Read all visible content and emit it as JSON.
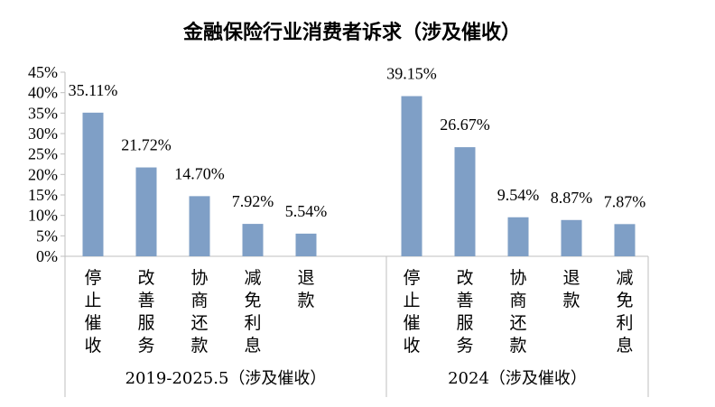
{
  "chart_data": {
    "type": "bar",
    "title": "金融保险行业消费者诉求（涉及催收）",
    "xlabel": "",
    "ylabel": "",
    "ylim": [
      0,
      45
    ],
    "yticks": [
      "0%",
      "5%",
      "10%",
      "15%",
      "20%",
      "25%",
      "30%",
      "35%",
      "40%",
      "45%"
    ],
    "grid": false,
    "bar_color": "#7f9fc6",
    "groups": [
      {
        "name": "2019-2025.5（涉及催收）",
        "categories": [
          "停止催收",
          "改善服务",
          "协商还款",
          "减免利息",
          "退款"
        ],
        "values": [
          35.11,
          21.72,
          14.7,
          7.92,
          5.54
        ],
        "labels": [
          "35.11%",
          "21.72%",
          "14.70%",
          "7.92%",
          "5.54%"
        ]
      },
      {
        "name": "2024（涉及催收）",
        "categories": [
          "停止催收",
          "改善服务",
          "协商还款",
          "退款",
          "减免利息"
        ],
        "values": [
          39.15,
          26.67,
          9.54,
          8.87,
          7.87
        ],
        "labels": [
          "39.15%",
          "26.67%",
          "9.54%",
          "8.87%",
          "7.87%"
        ]
      }
    ]
  }
}
